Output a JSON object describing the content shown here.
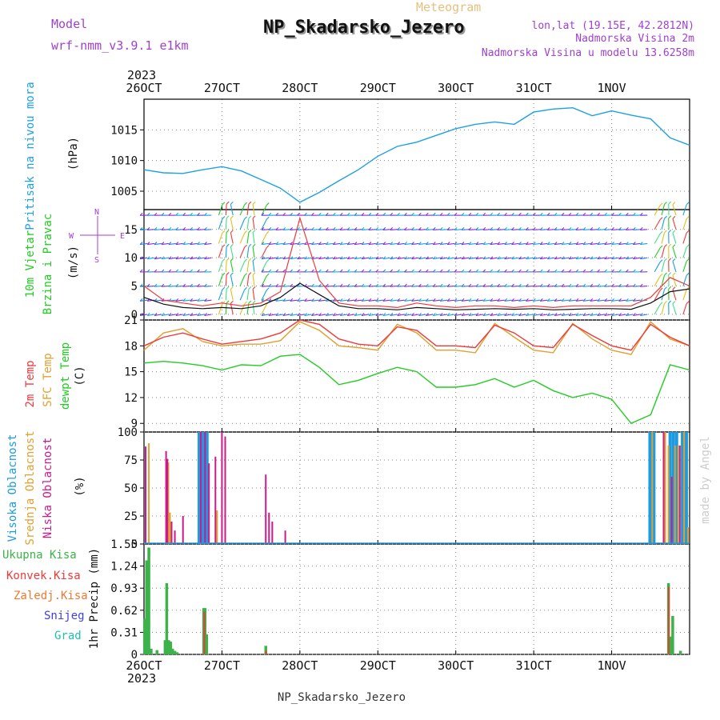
{
  "header": {
    "model_label": "Model",
    "model_name": "wrf-nmm_v3.9.1 e1km",
    "product": "Meteogram",
    "station": "NP_Skadarsko_Jezero",
    "lonlat": "lon,lat (19.15E, 42.2812N)",
    "altitude": "Nadmorska Visina 2m",
    "model_altitude": "Nadmorska Visina u modelu 13.6258m",
    "footer_station": "NP_Skadarsko_Jezero",
    "credit": "made by Angel"
  },
  "colors": {
    "pressure": "#1ea0e6",
    "temp2m": "#ee3a3a",
    "sfc_temp": "#e0a030",
    "dewpoint": "#22cc22",
    "cloud_high": "#1e9be0",
    "cloud_mid": "#e0a030",
    "cloud_low": "#cc1a8a",
    "precip_total": "#3cb34a",
    "precip_conv": "#ee3a3a",
    "wind_speed": "#111111",
    "wind_gust": "#ee3a3a",
    "label_purple": "#a040d0"
  },
  "chart_data": [
    {
      "type": "line",
      "title": "Pritisak na nivou mora",
      "ylabel": "(hPa)",
      "ylim": [
        1002,
        1020
      ],
      "yticks": [
        "1005",
        "1010",
        "1015"
      ],
      "grid": true,
      "x_ticks": [
        "26OCT",
        "27OCT",
        "28OCT",
        "29OCT",
        "30OCT",
        "31OCT",
        "1NOV"
      ],
      "x_year": "2023",
      "x_hours": [
        0,
        6,
        12,
        18,
        24,
        30,
        36,
        42,
        48,
        54,
        60,
        66,
        72,
        78,
        84,
        90,
        96,
        102,
        108,
        114,
        120,
        126,
        132,
        138,
        144,
        150,
        156,
        162,
        168
      ],
      "series": [
        {
          "values": [
            1008.5,
            1008.0,
            1007.9,
            1008.5,
            1009.0,
            1008.3,
            1006.9,
            1005.5,
            1003.2,
            1004.8,
            1006.7,
            1008.5,
            1010.7,
            1012.3,
            1013.0,
            1014.1,
            1015.2,
            1015.9,
            1016.3,
            1015.9,
            1017.9,
            1018.4,
            1018.6,
            1017.3,
            1018.1,
            1017.4,
            1016.8,
            1013.7,
            1012.5
          ]
        }
      ]
    },
    {
      "type": "line",
      "title": "10m Vjetar",
      "subtitle": "Brzina i Pravac",
      "ylabel": "(m/s)",
      "ylim": [
        -1,
        18.5
      ],
      "yticks": [
        "0",
        "5",
        "10",
        "15"
      ],
      "compass": {
        "n": "N",
        "s": "S",
        "w": "W",
        "e": "E"
      },
      "grid": true,
      "x_hours": [
        0,
        6,
        12,
        18,
        24,
        30,
        36,
        42,
        48,
        54,
        60,
        66,
        72,
        78,
        84,
        90,
        96,
        102,
        108,
        114,
        120,
        126,
        132,
        138,
        144,
        150,
        156,
        162,
        168
      ],
      "series": [
        {
          "values": [
            3.0,
            1.8,
            1.2,
            1.0,
            1.2,
            1.0,
            1.5,
            3.0,
            5.5,
            3.5,
            1.5,
            1.0,
            1.0,
            0.8,
            1.2,
            1.0,
            0.8,
            0.9,
            1.0,
            0.9,
            1.0,
            0.8,
            0.9,
            1.0,
            1.0,
            0.9,
            2.0,
            4.0,
            4.5
          ]
        },
        {
          "values": [
            5.0,
            2.5,
            2.0,
            1.5,
            2.0,
            1.5,
            2.0,
            4.0,
            17.0,
            6.0,
            2.0,
            1.5,
            1.5,
            1.2,
            2.0,
            1.5,
            1.2,
            1.5,
            1.5,
            1.2,
            1.5,
            1.2,
            1.5,
            1.5,
            1.5,
            1.5,
            3.0,
            6.5,
            5.0
          ]
        }
      ]
    },
    {
      "type": "line",
      "title": "2m Temp",
      "ylabel": "(C)",
      "ylim": [
        8,
        21
      ],
      "yticks": [
        "9",
        "12",
        "15",
        "18",
        "21"
      ],
      "grid": true,
      "x_hours": [
        0,
        6,
        12,
        18,
        24,
        30,
        36,
        42,
        48,
        54,
        60,
        66,
        72,
        78,
        84,
        90,
        96,
        102,
        108,
        114,
        120,
        126,
        132,
        138,
        144,
        150,
        156,
        162,
        168
      ],
      "series": [
        {
          "name": "2m Temp",
          "values": [
            18.0,
            19.0,
            19.5,
            18.8,
            18.2,
            18.5,
            18.8,
            19.5,
            21.0,
            20.5,
            18.8,
            18.2,
            18.0,
            20.2,
            19.8,
            18.0,
            18.0,
            17.8,
            20.4,
            19.5,
            18.0,
            17.8,
            20.5,
            19.2,
            18.0,
            17.5,
            20.5,
            19.0,
            18.0
          ]
        },
        {
          "name": "SFC Temp",
          "values": [
            17.5,
            19.5,
            20.0,
            18.5,
            18.0,
            18.2,
            18.2,
            18.6,
            20.8,
            19.8,
            18.0,
            17.8,
            17.5,
            20.5,
            19.5,
            17.5,
            17.5,
            17.2,
            20.6,
            19.0,
            17.5,
            17.2,
            20.6,
            18.8,
            17.5,
            17.0,
            20.8,
            18.8,
            18.0
          ]
        },
        {
          "name": "dewpt Temp",
          "values": [
            16.0,
            16.2,
            16.0,
            15.7,
            15.2,
            15.8,
            15.7,
            16.8,
            17.0,
            15.5,
            13.5,
            14.0,
            14.8,
            15.5,
            15.0,
            13.2,
            13.2,
            13.5,
            14.2,
            13.2,
            14.0,
            12.8,
            12.0,
            12.5,
            11.8,
            9.0,
            10.0,
            15.8,
            15.2
          ]
        }
      ]
    },
    {
      "type": "bar",
      "title": "Visoka Oblacnost",
      "ylabel": "(%)",
      "ylim": [
        0,
        100
      ],
      "yticks": [
        "0",
        "25",
        "50",
        "75",
        "100"
      ],
      "grid": true,
      "series": [
        {
          "name": "Visoka Oblacnost",
          "points": [
            [
              17,
              100
            ],
            [
              17.8,
              100
            ],
            [
              18.2,
              100
            ],
            [
              18.6,
              100
            ],
            [
              19.0,
              100
            ],
            [
              19.4,
              100
            ],
            [
              155.8,
              100
            ],
            [
              156.4,
              100
            ],
            [
              157.0,
              100
            ],
            [
              162.0,
              100
            ],
            [
              163.0,
              100
            ],
            [
              164.0,
              100
            ],
            [
              165.8,
              100
            ],
            [
              166.4,
              100
            ],
            [
              167.0,
              100
            ]
          ]
        },
        {
          "name": "Srednja Oblacnost",
          "points": [
            [
              1.5,
              90
            ],
            [
              7.5,
              73
            ],
            [
              8.0,
              28
            ],
            [
              22.5,
              30
            ],
            [
              156.5,
              100
            ],
            [
              160.5,
              100
            ],
            [
              161.5,
              88
            ],
            [
              163.5,
              88
            ],
            [
              164.5,
              88
            ],
            [
              166.3,
              100
            ],
            [
              167.5,
              15
            ]
          ]
        },
        {
          "name": "Niska Oblacnost",
          "points": [
            [
              0.5,
              87
            ],
            [
              6.8,
              83
            ],
            [
              7.2,
              76
            ],
            [
              8.5,
              20
            ],
            [
              9.5,
              12
            ],
            [
              12.0,
              25
            ],
            [
              17.5,
              100
            ],
            [
              18.8,
              100
            ],
            [
              20.0,
              72
            ],
            [
              22.0,
              78
            ],
            [
              24.0,
              100
            ],
            [
              25.0,
              96
            ],
            [
              37.5,
              62
            ],
            [
              38.5,
              28
            ],
            [
              39.5,
              20
            ],
            [
              43.5,
              12
            ],
            [
              160.0,
              100
            ],
            [
              162.5,
              60
            ],
            [
              165.0,
              88
            ]
          ]
        }
      ]
    },
    {
      "type": "bar",
      "title": "Ukupna Kisa",
      "ylabel": "1hr Precip (mm)",
      "ylim": [
        0,
        1.55
      ],
      "yticks": [
        "0",
        "0.31",
        "0.62",
        "0.93",
        "1.24",
        "1.55"
      ],
      "grid": true,
      "series": [
        {
          "name": "Ukupna Kisa",
          "points": [
            [
              0.2,
              0.5
            ],
            [
              0.8,
              1.32
            ],
            [
              1.5,
              1.5
            ],
            [
              2.2,
              0.08
            ],
            [
              4.0,
              0.06
            ],
            [
              6.5,
              0.2
            ],
            [
              7.0,
              1.0
            ],
            [
              7.6,
              0.2
            ],
            [
              8.2,
              0.18
            ],
            [
              8.8,
              0.08
            ],
            [
              9.5,
              0.05
            ],
            [
              10.2,
              0.03
            ],
            [
              18.4,
              0.65
            ],
            [
              18.8,
              0.65
            ],
            [
              19.3,
              0.28
            ],
            [
              37.5,
              0.12
            ],
            [
              161.5,
              1.0
            ],
            [
              162.2,
              0.25
            ],
            [
              162.8,
              0.54
            ],
            [
              165.2,
              0.05
            ]
          ]
        },
        {
          "name": "Konvek.Kisa",
          "points": [
            [
              18.6,
              0.6
            ],
            [
              37.6,
              0.05
            ],
            [
              161.6,
              0.95
            ]
          ]
        },
        {
          "name": "Zaledj.Kisa",
          "points": []
        },
        {
          "name": "Snijeg",
          "points": []
        },
        {
          "name": "Grad",
          "points": []
        }
      ],
      "x_ticks": [
        "26OCT",
        "27OCT",
        "28OCT",
        "29OCT",
        "30OCT",
        "31OCT",
        "1NOV"
      ],
      "x_year": "2023"
    }
  ]
}
